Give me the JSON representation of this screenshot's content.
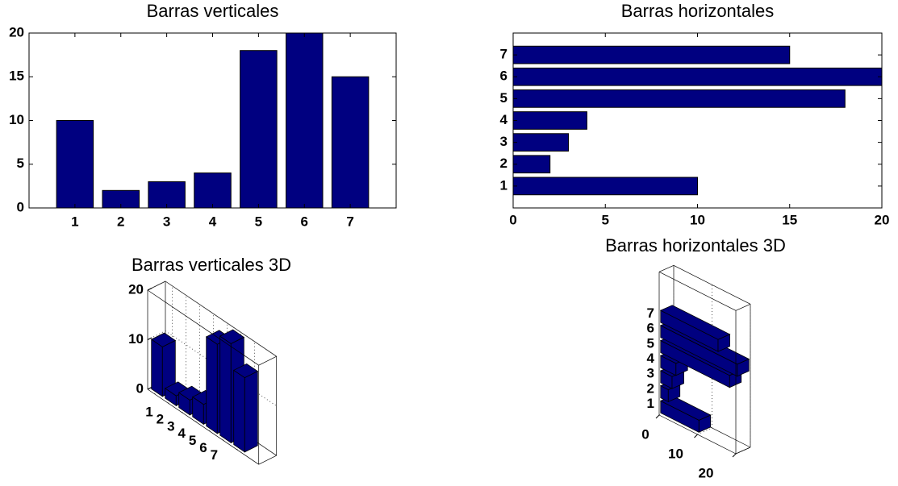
{
  "chart_data": [
    {
      "type": "bar",
      "title": "Barras verticales",
      "categories": [
        "1",
        "2",
        "3",
        "4",
        "5",
        "6",
        "7"
      ],
      "values": [
        10,
        2,
        3,
        4,
        18,
        20,
        15
      ],
      "color": "#000080",
      "ylim": [
        0,
        20
      ],
      "yticks": [
        0,
        5,
        10,
        15,
        20
      ]
    },
    {
      "type": "barh",
      "title": "Barras horizontales",
      "categories": [
        "1",
        "2",
        "3",
        "4",
        "5",
        "6",
        "7"
      ],
      "values": [
        10,
        2,
        3,
        4,
        18,
        20,
        15
      ],
      "color": "#000080",
      "xlim": [
        0,
        20
      ],
      "xticks": [
        0,
        5,
        10,
        15,
        20
      ]
    },
    {
      "type": "bar3",
      "title": "Barras verticales 3D",
      "categories": [
        "1",
        "2",
        "3",
        "4",
        "5",
        "6",
        "7"
      ],
      "values": [
        10,
        2,
        3,
        4,
        18,
        20,
        15
      ],
      "color": "#000080",
      "ylim": [
        0,
        20
      ],
      "yticks": [
        0,
        10,
        20
      ],
      "grid": true
    },
    {
      "type": "bar3h",
      "title": "Barras horizontales 3D",
      "categories": [
        "1",
        "2",
        "3",
        "4",
        "5",
        "6",
        "7"
      ],
      "values": [
        10,
        2,
        3,
        4,
        18,
        20,
        15
      ],
      "color": "#000080",
      "xlim": [
        0,
        20
      ],
      "xticks": [
        0,
        10,
        20
      ],
      "grid": true
    }
  ]
}
